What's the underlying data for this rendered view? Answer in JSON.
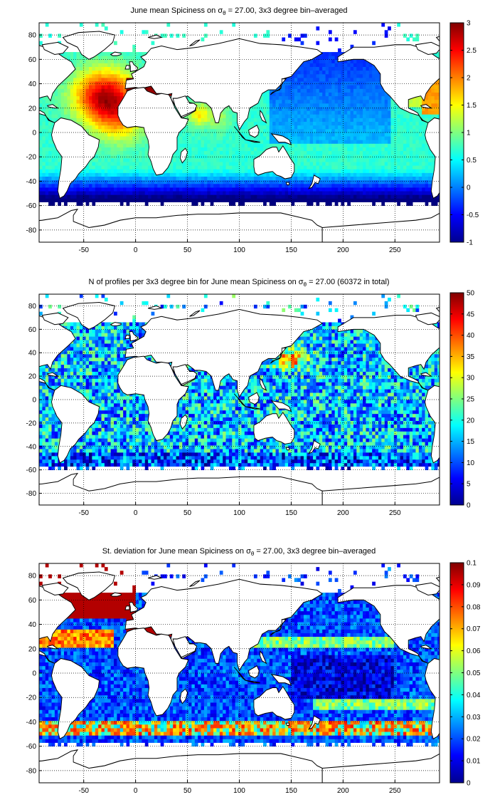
{
  "figure": {
    "panels": [
      {
        "id": "mean",
        "title_pre": "June mean Spiciness on ",
        "title_sym": "σ",
        "title_sub": "θ",
        "title_post": " = 27.00, 3x3 degree bin–averaged",
        "colorbar_ticks": [
          "-1",
          "-0.5",
          "0",
          "0.5",
          "1",
          "1.5",
          "2",
          "2.5",
          "3"
        ],
        "colorbar_range": [
          -1,
          3
        ]
      },
      {
        "id": "count",
        "title_pre": "N of profiles per 3x3 degree bin for June mean Spiciness on ",
        "title_sym": "σ",
        "title_sub": "θ",
        "title_post": " = 27.00 (60372 in total)",
        "colorbar_ticks": [
          "0",
          "5",
          "10",
          "15",
          "20",
          "25",
          "30",
          "35",
          "40",
          "45",
          "50"
        ],
        "colorbar_range": [
          0,
          50
        ]
      },
      {
        "id": "std",
        "title_pre": "St. deviation for June mean Spiciness on ",
        "title_sym": "σ",
        "title_sub": "θ",
        "title_post": " = 27.00, 3x3 degree bin–averaged",
        "colorbar_ticks": [
          "0",
          "0.01",
          "0.02",
          "0.03",
          "0.04",
          "0.05",
          "0.06",
          "0.07",
          "0.08",
          "0.09",
          "0.1"
        ],
        "colorbar_range": [
          0,
          0.1
        ]
      }
    ],
    "x_ticks": [
      "-50",
      "0",
      "50",
      "100",
      "150",
      "200",
      "250"
    ],
    "y_ticks": [
      "80",
      "60",
      "40",
      "20",
      "0",
      "-20",
      "-40",
      "-60",
      "-80"
    ],
    "x_range": [
      -93,
      293
    ],
    "y_range": [
      -90,
      90
    ],
    "grid": "dotted",
    "colormap": "jet",
    "land_color": "#ffffff",
    "coast_color": "#000000"
  }
}
